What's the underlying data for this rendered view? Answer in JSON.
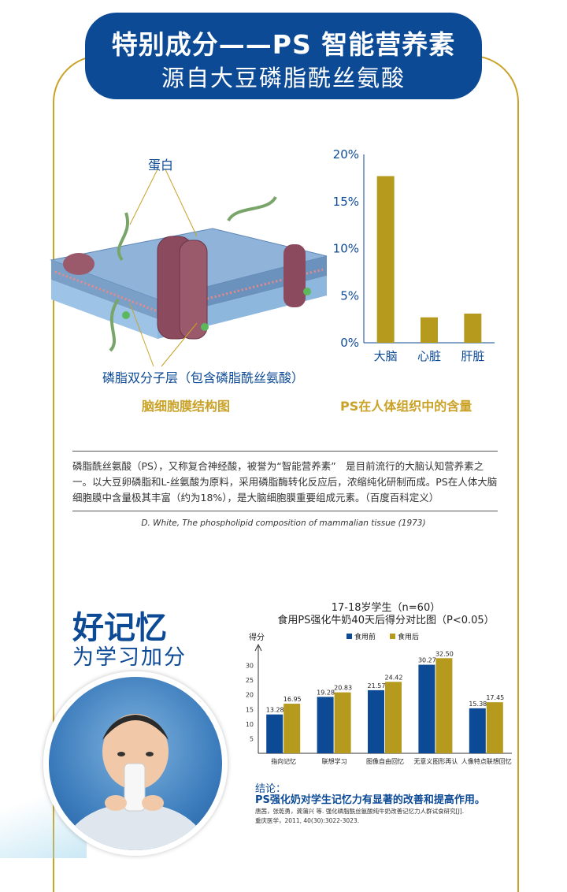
{
  "header": {
    "line1": "特别成分——PS  智能营养素",
    "line2": "源自大豆磷脂酰丝氨酸"
  },
  "membrane_figure": {
    "label_protein": "蛋白",
    "label_bilayer": "磷脂双分子层（包含磷脂酰丝氨酸）",
    "caption": "脑细胞膜结构图"
  },
  "colors": {
    "brand_blue": "#0d4a96",
    "gold": "#c9a227",
    "bar_gold": "#b59a1e"
  },
  "chart_data": [
    {
      "type": "bar",
      "title": "",
      "caption": "PS在人体组织中的含量",
      "categories": [
        "大脑",
        "心脏",
        "肝脏"
      ],
      "values": [
        17.7,
        2.7,
        3.1
      ],
      "y_ticks": [
        "0%",
        "5%",
        "10%",
        "15%",
        "20%"
      ],
      "ylim": [
        0,
        20
      ],
      "grid": false
    },
    {
      "type": "bar",
      "title": "17-18岁学生（n=60）",
      "subtitle": "食用PS强化牛奶40天后得分对比图（P<0.05）",
      "ylabel": "得分",
      "categories": [
        "指向记忆",
        "联想学习",
        "图像自由回忆",
        "无意义图形再认",
        "人像特点联想回忆"
      ],
      "series": [
        {
          "name": "食用前",
          "values": [
            13.28,
            19.28,
            21.57,
            30.27,
            15.38
          ],
          "labels": [
            "13.28",
            "19.28",
            "21.57",
            "30.27",
            "15.38"
          ],
          "color": "#0d4a96"
        },
        {
          "name": "食用后",
          "values": [
            16.95,
            20.83,
            24.42,
            32.5,
            17.45
          ],
          "labels": [
            "16.95",
            "20.83",
            "24.42",
            "32.50",
            "17.45"
          ],
          "color": "#b59a1e"
        }
      ],
      "y_ticks": [
        "5",
        "10",
        "15",
        "20",
        "25",
        "30"
      ],
      "ylim": [
        0,
        35
      ],
      "legend": "top-center",
      "grid": false
    }
  ],
  "description": {
    "paragraph": "磷脂酰丝氨酸（PS），又称复合神经酸，被誉为“智能营养素”　是目前流行的大脑认知营养素之一。以大豆卵磷脂和L-丝氨酸为原料，采用磷脂酶转化反应后，浓缩纯化研制而成。PS在人体大脑细胞膜中含量极其丰富（约为18%），是大脑细胞膜重要组成元素。（百度百科定义）",
    "citation": "D. White, The phospholipid composition of mammalian tissue (1973)"
  },
  "memory_section": {
    "heading": "好记忆",
    "subheading": "为学习加分",
    "conclusion_label": "结论：",
    "conclusion_text": "PS强化奶对学生记忆力有显著的改善和提高作用。",
    "reference_1": "唐茜，张乾勇，龚蒲兴 等. 强化磷脂酰丝氨酸纯牛奶改善记忆力人群试食研究[J].",
    "reference_2": "重庆医学，2011, 40(30):3022-3023."
  }
}
